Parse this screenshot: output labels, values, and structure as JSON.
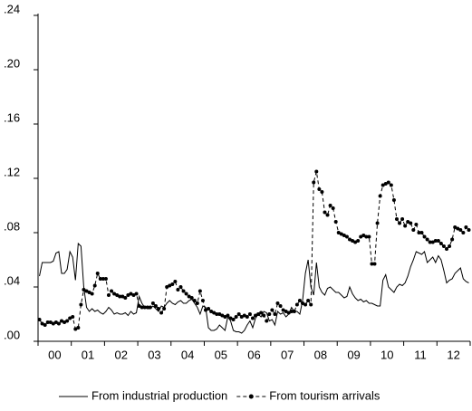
{
  "chart_data": {
    "type": "line",
    "categories": [
      null,
      null,
      null,
      null,
      null,
      null,
      "00",
      null,
      null,
      null,
      null,
      null,
      null,
      null,
      null,
      null,
      null,
      null,
      "01",
      null,
      null,
      null,
      null,
      null,
      null,
      null,
      null,
      null,
      null,
      null,
      "02",
      null,
      null,
      null,
      null,
      null,
      null,
      null,
      null,
      null,
      null,
      null,
      "03",
      null,
      null,
      null,
      null,
      null,
      null,
      null,
      null,
      null,
      null,
      null,
      "04",
      null,
      null,
      null,
      null,
      null,
      null,
      null,
      null,
      null,
      null,
      null,
      "05",
      null,
      null,
      null,
      null,
      null,
      null,
      null,
      null,
      null,
      null,
      null,
      "06",
      null,
      null,
      null,
      null,
      null,
      null,
      null,
      null,
      null,
      null,
      null,
      "07",
      null,
      null,
      null,
      null,
      null,
      null,
      null,
      null,
      null,
      null,
      null,
      "08",
      null,
      null,
      null,
      null,
      null,
      null,
      null,
      null,
      null,
      null,
      null,
      "09",
      null,
      null,
      null,
      null,
      null,
      null,
      null,
      null,
      null,
      null,
      null,
      "10",
      null,
      null,
      null,
      null,
      null,
      null,
      null,
      null,
      null,
      null,
      null,
      "11",
      null,
      null,
      null,
      null,
      null,
      null,
      null,
      null,
      null,
      null,
      null,
      "12",
      null,
      null,
      null,
      null,
      null
    ],
    "series": [
      {
        "name": "From industrial production",
        "color": "#000000",
        "linestyle": "solid",
        "marker": "none",
        "values": [
          0.048,
          0.058,
          0.058,
          0.058,
          0.058,
          0.059,
          0.065,
          0.066,
          0.05,
          0.05,
          0.053,
          0.066,
          0.062,
          0.045,
          0.072,
          0.07,
          0.04,
          0.025,
          0.022,
          0.024,
          0.022,
          0.023,
          0.021,
          0.02,
          0.022,
          0.025,
          0.023,
          0.02,
          0.021,
          0.02,
          0.02,
          0.021,
          0.019,
          0.022,
          0.02,
          0.021,
          0.033,
          0.028,
          0.025,
          0.024,
          0.024,
          0.026,
          0.024,
          0.022,
          0.026,
          0.025,
          0.028,
          0.03,
          0.028,
          0.027,
          0.029,
          0.03,
          0.028,
          0.028,
          0.03,
          0.031,
          0.028,
          0.025,
          0.02,
          0.026,
          0.025,
          0.01,
          0.008,
          0.008,
          0.009,
          0.012,
          0.01,
          0.008,
          0.018,
          0.015,
          0.008,
          0.007,
          0.007,
          0.006,
          0.008,
          0.012,
          0.015,
          0.01,
          0.017,
          0.02,
          0.018,
          0.022,
          0.021,
          0.015,
          0.016,
          0.012,
          0.022,
          0.02,
          0.021,
          0.018,
          0.02,
          0.025,
          0.022,
          0.022,
          0.02,
          0.03,
          0.05,
          0.06,
          0.04,
          0.034,
          0.058,
          0.04,
          0.036,
          0.034,
          0.039,
          0.04,
          0.038,
          0.036,
          0.036,
          0.034,
          0.032,
          0.033,
          0.04,
          0.035,
          0.032,
          0.03,
          0.031,
          0.029,
          0.03,
          0.028,
          0.028,
          0.027,
          0.026,
          0.026,
          0.045,
          0.049,
          0.04,
          0.038,
          0.036,
          0.04,
          0.042,
          0.041,
          0.043,
          0.048,
          0.055,
          0.06,
          0.066,
          0.065,
          0.064,
          0.066,
          0.058,
          0.06,
          0.062,
          0.058,
          0.063,
          0.06,
          0.052,
          0.043,
          0.045,
          0.046,
          0.05,
          0.052,
          0.054,
          0.046,
          0.044,
          0.043
        ]
      },
      {
        "name": "From tourism arrivals",
        "color": "#000000",
        "linestyle": "dashed",
        "marker": "circle",
        "values": [
          0.016,
          0.013,
          0.012,
          0.014,
          0.014,
          0.013,
          0.014,
          0.013,
          0.015,
          0.014,
          0.015,
          0.017,
          0.018,
          0.009,
          0.01,
          0.027,
          0.038,
          0.037,
          0.036,
          0.035,
          0.041,
          0.05,
          0.046,
          0.046,
          0.046,
          0.034,
          0.037,
          0.035,
          0.034,
          0.033,
          0.033,
          0.032,
          0.034,
          0.035,
          0.034,
          0.035,
          0.026,
          0.025,
          0.025,
          0.025,
          0.025,
          0.028,
          0.026,
          0.024,
          0.021,
          0.024,
          0.04,
          0.041,
          0.042,
          0.044,
          0.038,
          0.04,
          0.037,
          0.035,
          0.033,
          0.032,
          0.03,
          0.028,
          0.037,
          0.03,
          0.023,
          0.024,
          0.022,
          0.021,
          0.02,
          0.02,
          0.019,
          0.018,
          0.019,
          0.017,
          0.016,
          0.018,
          0.02,
          0.018,
          0.019,
          0.018,
          0.02,
          0.017,
          0.019,
          0.02,
          0.021,
          0.019,
          0.015,
          0.02,
          0.023,
          0.02,
          0.028,
          0.026,
          0.023,
          0.022,
          0.021,
          0.022,
          0.022,
          0.027,
          0.03,
          0.028,
          0.027,
          0.03,
          0.027,
          0.117,
          0.125,
          0.112,
          0.11,
          0.095,
          0.093,
          0.1,
          0.098,
          0.088,
          0.08,
          0.079,
          0.078,
          0.077,
          0.075,
          0.074,
          0.073,
          0.074,
          0.077,
          0.078,
          0.077,
          0.077,
          0.057,
          0.057,
          0.087,
          0.107,
          0.115,
          0.116,
          0.117,
          0.115,
          0.104,
          0.09,
          0.087,
          0.09,
          0.085,
          0.088,
          0.087,
          0.082,
          0.086,
          0.08,
          0.08,
          0.077,
          0.075,
          0.073,
          0.073,
          0.074,
          0.074,
          0.072,
          0.07,
          0.068,
          0.07,
          0.075,
          0.084,
          0.083,
          0.082,
          0.08,
          0.084,
          0.082
        ]
      }
    ],
    "ylim": [
      0,
      0.24
    ],
    "yticks": [
      {
        "value": 0,
        "label": ".00"
      },
      {
        "value": 0.04,
        "label": ".04"
      },
      {
        "value": 0.08,
        "label": ".08"
      },
      {
        "value": 0.12,
        "label": ".12"
      },
      {
        "value": 0.16,
        "label": ".16"
      },
      {
        "value": 0.2,
        "label": ".20"
      },
      {
        "value": 0.24,
        "label": ".24"
      }
    ],
    "grid": false,
    "legend": "bottom"
  }
}
